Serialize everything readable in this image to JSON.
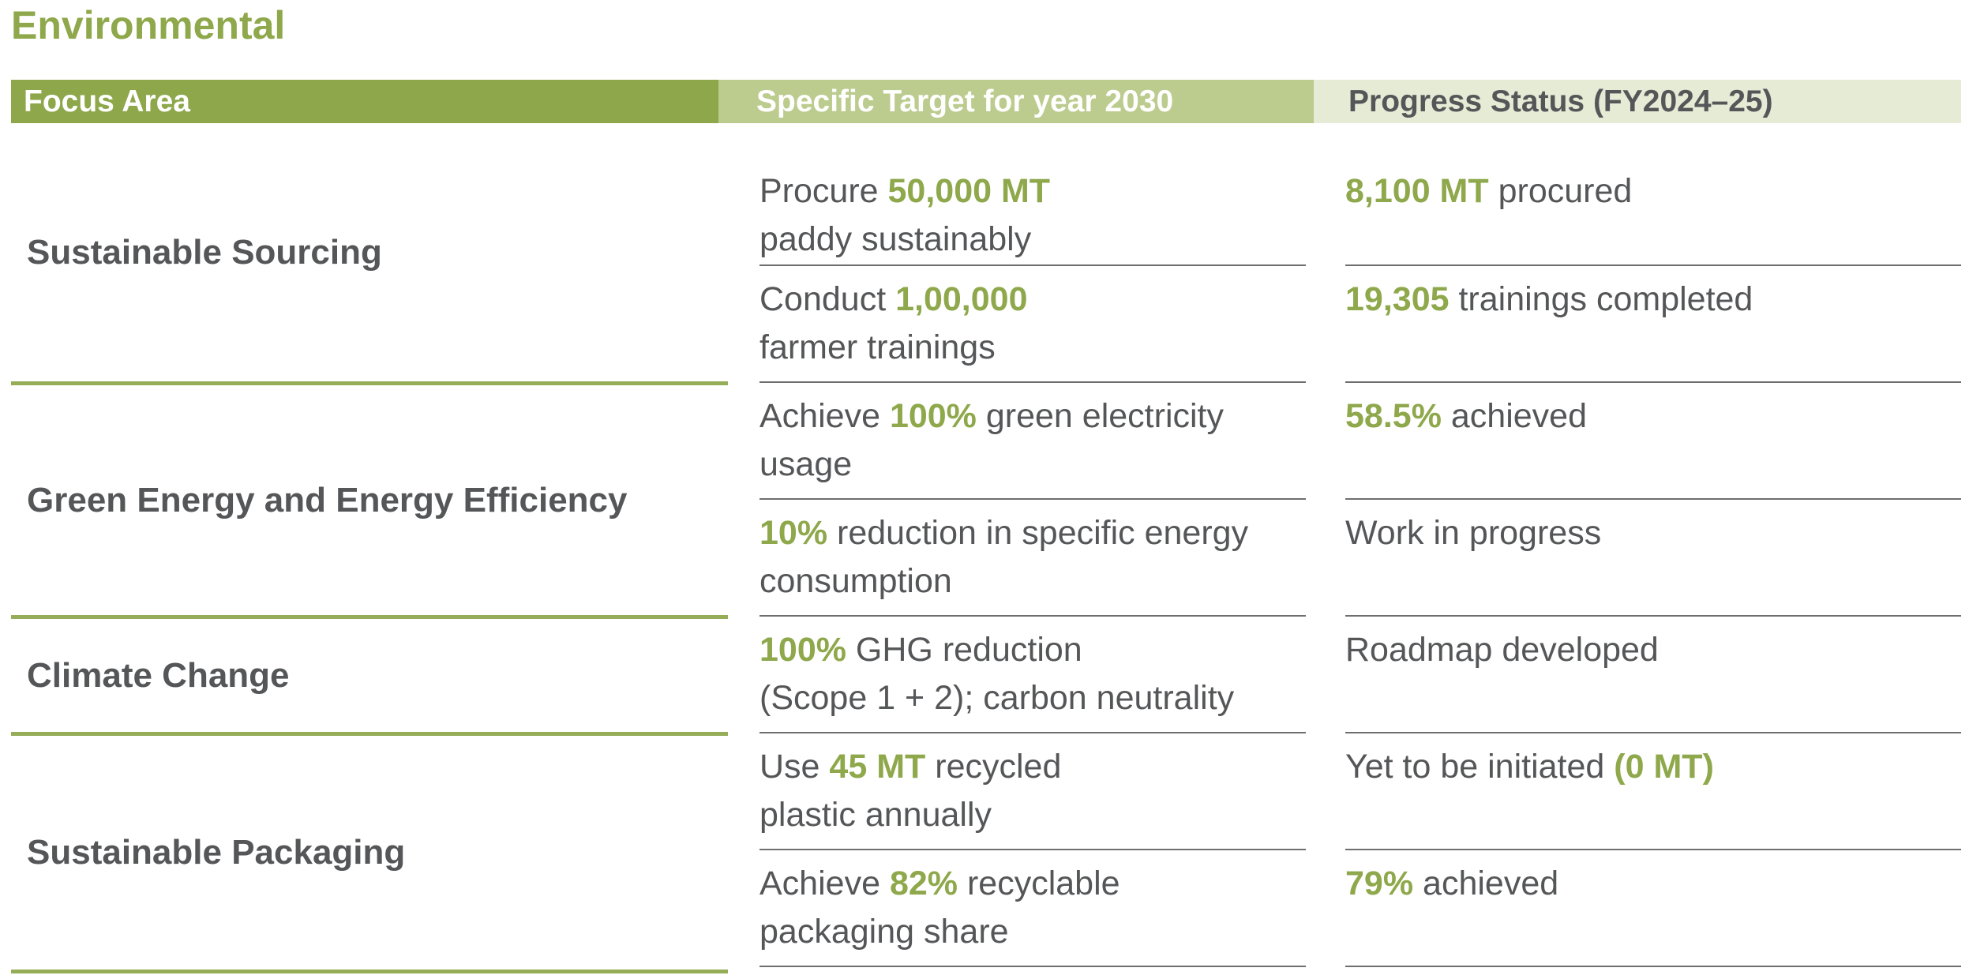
{
  "section_title": "Environmental",
  "header": {
    "col1": "Focus Area",
    "col2": "Specific Target for year 2030",
    "col3": "Progress Status (FY2024–25)"
  },
  "colors": {
    "accent": "#8ea84b",
    "header_col1_bg": "#8da74a",
    "header_col2_bg": "#bccb8e",
    "header_col3_bg": "#e6ebd6",
    "body_text": "#555658"
  },
  "focus_areas": [
    {
      "name": "Sustainable Sourcing",
      "rows": [
        {
          "target": {
            "l1_pre": "Procure ",
            "l1_hl": "50,000 MT",
            "l1_post": "",
            "l2": "paddy sustainably"
          },
          "progress": {
            "hl": "8,100 MT",
            "post": " procured"
          }
        },
        {
          "target": {
            "l1_pre": "Conduct ",
            "l1_hl": "1,00,000",
            "l1_post": "",
            "l2": "farmer trainings"
          },
          "progress": {
            "hl": "19,305",
            "post": " trainings completed"
          }
        }
      ]
    },
    {
      "name": "Green Energy and Energy Efficiency",
      "rows": [
        {
          "target": {
            "l1_pre": "Achieve ",
            "l1_hl": "100%",
            "l1_post": " green electricity",
            "l2": "usage"
          },
          "progress": {
            "hl": "58.5%",
            "post": " achieved"
          }
        },
        {
          "target": {
            "l1_pre": "",
            "l1_hl": "10%",
            "l1_post": " reduction in specific energy",
            "l2": "consumption"
          },
          "progress": {
            "pre": "Work in progress"
          }
        }
      ]
    },
    {
      "name": "Climate Change",
      "rows": [
        {
          "target": {
            "l1_pre": "",
            "l1_hl": "100%",
            "l1_post": " GHG reduction",
            "l2": "(Scope 1 + 2); carbon neutrality"
          },
          "progress": {
            "pre": "Roadmap developed"
          }
        }
      ]
    },
    {
      "name": "Sustainable Packaging",
      "rows": [
        {
          "target": {
            "l1_pre": "Use ",
            "l1_hl": "45 MT",
            "l1_post": " recycled",
            "l2": "plastic annually"
          },
          "progress": {
            "pre": "Yet to be initiated ",
            "hl": "(0 MT)"
          }
        },
        {
          "target": {
            "l1_pre": "Achieve ",
            "l1_hl": "82%",
            "l1_post": " recyclable",
            "l2": "packaging share"
          },
          "progress": {
            "hl": "79%",
            "post": " achieved"
          }
        }
      ]
    }
  ]
}
